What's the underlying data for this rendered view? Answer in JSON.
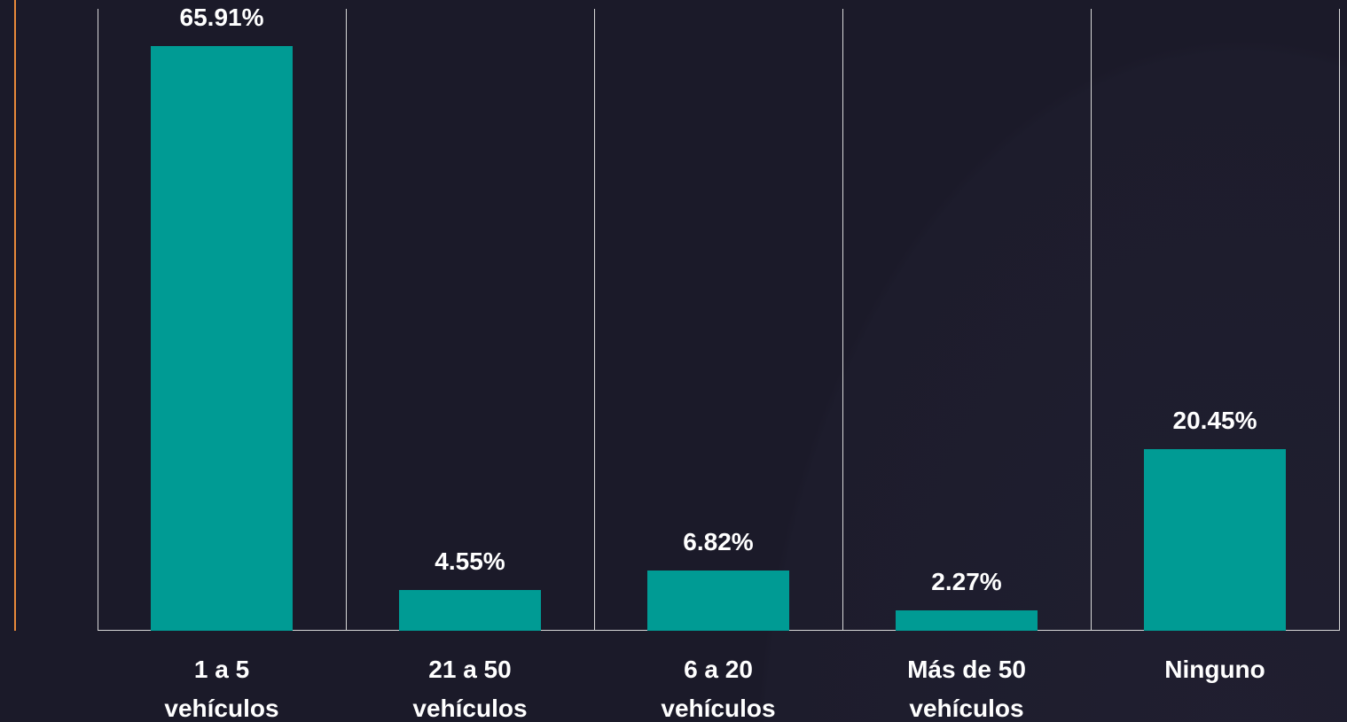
{
  "chart_data": {
    "type": "bar",
    "categories": [
      "1 a 5 vehículos",
      "21 a 50 vehículos",
      "6 a 20 vehículos",
      "Más de 50 vehículos",
      "Ninguno"
    ],
    "values": [
      65.91,
      4.55,
      6.82,
      2.27,
      20.45
    ],
    "value_labels": [
      "65.91%",
      "4.55%",
      "6.82%",
      "2.27%",
      "20.45%"
    ],
    "color": "#009b94",
    "ylim": [
      0,
      70
    ]
  }
}
